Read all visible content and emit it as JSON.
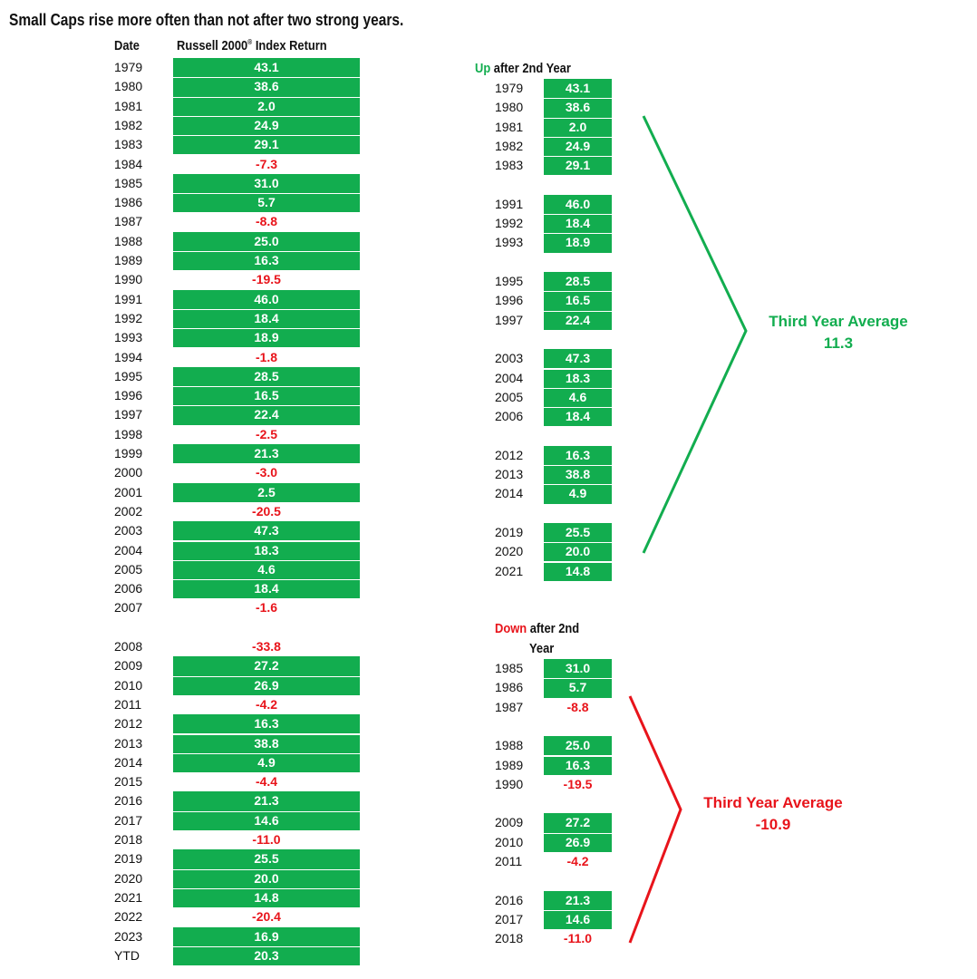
{
  "title": "Small Caps rise more often than not after two strong years.",
  "headers": {
    "date": "Date",
    "return_main": "Russell 2000",
    "return_reg": "®",
    "return_tail": " Index Return"
  },
  "colors": {
    "up_fill": "#12ad4f",
    "down_text": "#e8141b",
    "up_bracket": "#12ad4f",
    "down_bracket": "#e8141b"
  },
  "chart_data": {
    "type": "table",
    "main_table": [
      [
        "1979",
        43.1
      ],
      [
        "1980",
        38.6
      ],
      [
        "1981",
        2.0
      ],
      [
        "1982",
        24.9
      ],
      [
        "1983",
        29.1
      ],
      [
        "1984",
        -7.3
      ],
      [
        "1985",
        31.0
      ],
      [
        "1986",
        5.7
      ],
      [
        "1987",
        -8.8
      ],
      [
        "1988",
        25.0
      ],
      [
        "1989",
        16.3
      ],
      [
        "1990",
        -19.5
      ],
      [
        "1991",
        46.0
      ],
      [
        "1992",
        18.4
      ],
      [
        "1993",
        18.9
      ],
      [
        "1994",
        -1.8
      ],
      [
        "1995",
        28.5
      ],
      [
        "1996",
        16.5
      ],
      [
        "1997",
        22.4
      ],
      [
        "1998",
        -2.5
      ],
      [
        "1999",
        21.3
      ],
      [
        "2000",
        -3.0
      ],
      [
        "2001",
        2.5
      ],
      [
        "2002",
        -20.5
      ],
      [
        "2003",
        47.3
      ],
      [
        "2004",
        18.3
      ],
      [
        "2005",
        4.6
      ],
      [
        "2006",
        18.4
      ],
      [
        "2007",
        -1.6
      ],
      null,
      [
        "2008",
        -33.8
      ],
      [
        "2009",
        27.2
      ],
      [
        "2010",
        26.9
      ],
      [
        "2011",
        -4.2
      ],
      [
        "2012",
        16.3
      ],
      [
        "2013",
        38.8
      ],
      [
        "2014",
        4.9
      ],
      [
        "2015",
        -4.4
      ],
      [
        "2016",
        21.3
      ],
      [
        "2017",
        14.6
      ],
      [
        "2018",
        -11.0
      ],
      [
        "2019",
        25.5
      ],
      [
        "2020",
        20.0
      ],
      [
        "2021",
        14.8
      ],
      [
        "2022",
        -20.4
      ],
      [
        "2023",
        16.9
      ],
      [
        "YTD",
        20.3
      ]
    ],
    "up_group": {
      "label_colored": "Up",
      "label_rest": " after 2nd Year",
      "rows": [
        [
          "1979",
          43.1
        ],
        [
          "1980",
          38.6
        ],
        [
          "1981",
          2.0
        ],
        [
          "1982",
          24.9
        ],
        [
          "1983",
          29.1
        ],
        null,
        [
          "1991",
          46.0
        ],
        [
          "1992",
          18.4
        ],
        [
          "1993",
          18.9
        ],
        null,
        [
          "1995",
          28.5
        ],
        [
          "1996",
          16.5
        ],
        [
          "1997",
          22.4
        ],
        null,
        [
          "2003",
          47.3
        ],
        [
          "2004",
          18.3
        ],
        [
          "2005",
          4.6
        ],
        [
          "2006",
          18.4
        ],
        null,
        [
          "2012",
          16.3
        ],
        [
          "2013",
          38.8
        ],
        [
          "2014",
          4.9
        ],
        null,
        [
          "2019",
          25.5
        ],
        [
          "2020",
          20.0
        ],
        [
          "2021",
          14.8
        ]
      ],
      "average_label": "Third Year Average",
      "average_value": "11.3"
    },
    "down_group": {
      "label_colored": "Down",
      "label_rest": " after 2nd",
      "label_line2": "Year",
      "rows": [
        [
          "1985",
          31.0
        ],
        [
          "1986",
          5.7
        ],
        [
          "1987",
          -8.8
        ],
        null,
        [
          "1988",
          25.0
        ],
        [
          "1989",
          16.3
        ],
        [
          "1990",
          -19.5
        ],
        null,
        [
          "2009",
          27.2
        ],
        [
          "2010",
          26.9
        ],
        [
          "2011",
          -4.2
        ],
        null,
        [
          "2016",
          21.3
        ],
        [
          "2017",
          14.6
        ],
        [
          "2018",
          -11.0
        ]
      ],
      "average_label": "Third Year Average",
      "average_value": "-10.9"
    }
  }
}
